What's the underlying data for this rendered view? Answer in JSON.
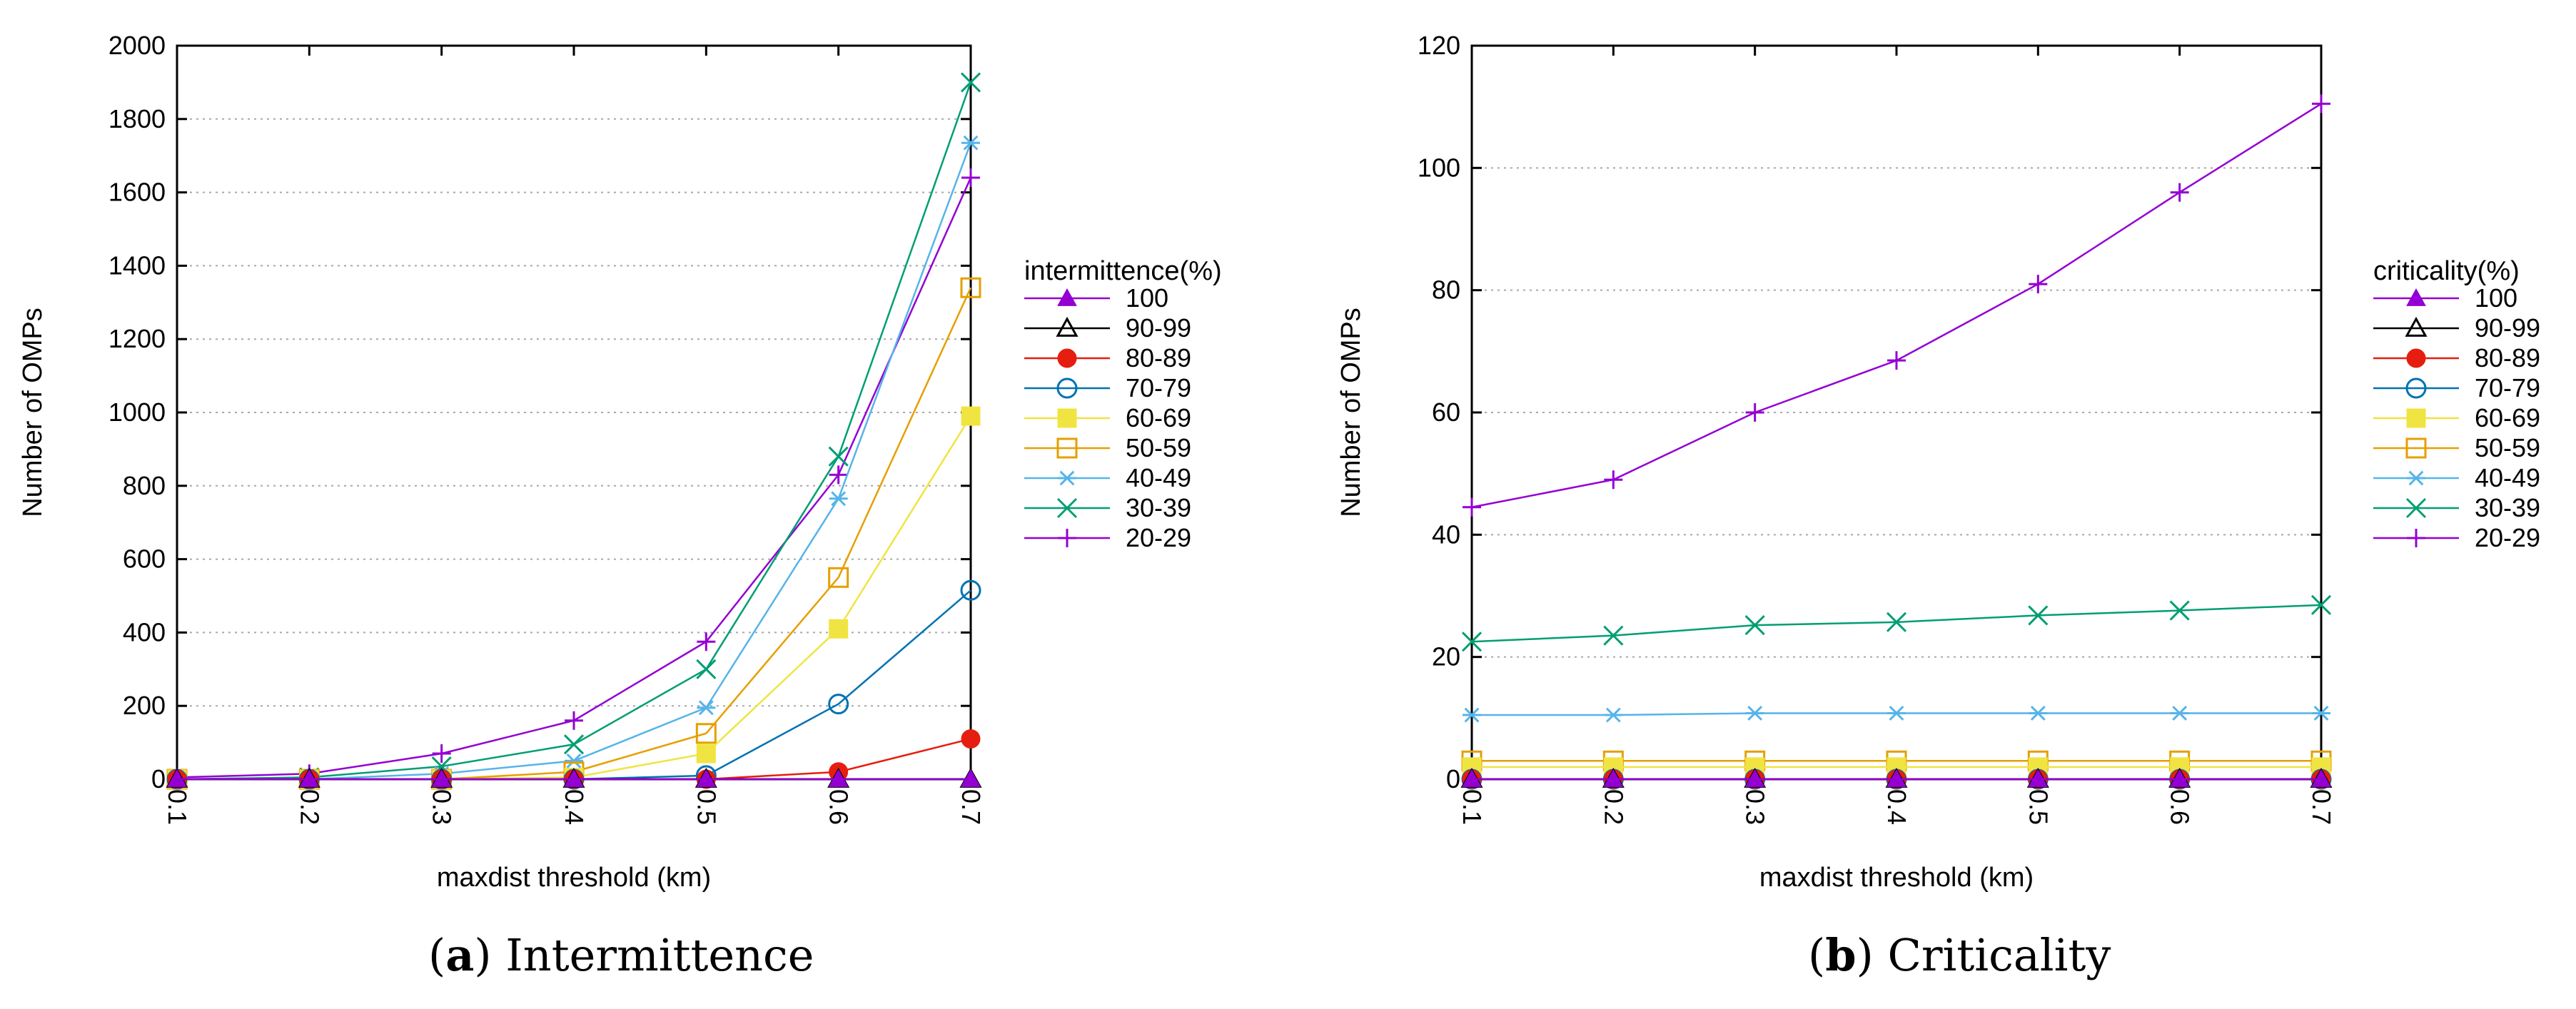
{
  "chart_data": [
    {
      "type": "line",
      "caption_letter": "a",
      "caption_title": "Intermittence",
      "xlabel": "maxdist threshold (km)",
      "ylabel": "Number of OMPs",
      "x": [
        0.1,
        0.2,
        0.3,
        0.4,
        0.5,
        0.6,
        0.7
      ],
      "x_tick_labels": [
        "0.1",
        "0.2",
        "0.3",
        "0.4",
        "0.5",
        "0.6",
        "0.7"
      ],
      "ylim": [
        0,
        2000
      ],
      "y_ticks": [
        0,
        200,
        400,
        600,
        800,
        1000,
        1200,
        1400,
        1600,
        1800,
        2000
      ],
      "y_tick_labels": [
        "0",
        "200",
        "400",
        "600",
        "800",
        "1000",
        "1200",
        "1400",
        "1600",
        "1800",
        "2000"
      ],
      "grid": true,
      "legend_title": "intermittence(%)",
      "legend_position": "right",
      "series": [
        {
          "name": "100",
          "color": "#9400d3",
          "marker": "triangle-filled",
          "values": [
            0,
            0,
            0,
            0,
            0,
            0,
            0
          ]
        },
        {
          "name": "90-99",
          "color": "#000000",
          "marker": "triangle-open",
          "values": [
            0,
            0,
            0,
            0,
            0,
            0,
            0
          ]
        },
        {
          "name": "80-89",
          "color": "#e51e10",
          "marker": "circle-filled",
          "values": [
            0,
            0,
            0,
            0,
            0,
            20,
            110
          ]
        },
        {
          "name": "70-79",
          "color": "#0072b2",
          "marker": "circle-open",
          "values": [
            0,
            0,
            0,
            0,
            10,
            205,
            515
          ]
        },
        {
          "name": "60-69",
          "color": "#f0e442",
          "marker": "square-filled",
          "values": [
            0,
            0,
            0,
            5,
            70,
            410,
            990
          ]
        },
        {
          "name": "50-59",
          "color": "#e69f00",
          "marker": "square-open",
          "values": [
            0,
            0,
            0,
            20,
            125,
            550,
            1340
          ]
        },
        {
          "name": "40-49",
          "color": "#56b4e9",
          "marker": "asterisk",
          "values": [
            0,
            0,
            15,
            50,
            195,
            765,
            1735
          ]
        },
        {
          "name": "30-39",
          "color": "#009e73",
          "marker": "x",
          "values": [
            0,
            5,
            35,
            95,
            300,
            880,
            1900
          ]
        },
        {
          "name": "20-29",
          "color": "#9400d3",
          "marker": "plus",
          "values": [
            5,
            15,
            70,
            160,
            375,
            830,
            1640
          ]
        }
      ]
    },
    {
      "type": "line",
      "caption_letter": "b",
      "caption_title": "Criticality",
      "xlabel": "maxdist threshold (km)",
      "ylabel": "Number of OMPs",
      "x": [
        0.1,
        0.2,
        0.3,
        0.4,
        0.5,
        0.6,
        0.7
      ],
      "x_tick_labels": [
        "0.1",
        "0.2",
        "0.3",
        "0.4",
        "0.5",
        "0.6",
        "0.7"
      ],
      "ylim": [
        0,
        120
      ],
      "y_ticks": [
        0,
        20,
        40,
        60,
        80,
        100,
        120
      ],
      "y_tick_labels": [
        "0",
        "20",
        "40",
        "60",
        "80",
        "100",
        "120"
      ],
      "grid": true,
      "legend_title": "criticality(%)",
      "legend_position": "right",
      "series": [
        {
          "name": "100",
          "color": "#9400d3",
          "marker": "triangle-filled",
          "values": [
            0,
            0,
            0,
            0,
            0,
            0,
            0
          ]
        },
        {
          "name": "90-99",
          "color": "#000000",
          "marker": "triangle-open",
          "values": [
            0,
            0,
            0,
            0,
            0,
            0,
            0
          ]
        },
        {
          "name": "80-89",
          "color": "#e51e10",
          "marker": "circle-filled",
          "values": [
            0,
            0,
            0,
            0,
            0,
            0,
            0
          ]
        },
        {
          "name": "70-79",
          "color": "#0072b2",
          "marker": "circle-open",
          "values": [
            0,
            0,
            0,
            0,
            0,
            0,
            0
          ]
        },
        {
          "name": "60-69",
          "color": "#f0e442",
          "marker": "square-filled",
          "values": [
            2,
            2,
            2,
            2,
            2,
            2,
            2
          ]
        },
        {
          "name": "50-59",
          "color": "#e69f00",
          "marker": "square-open",
          "values": [
            3,
            3,
            3,
            3,
            3,
            3,
            3
          ]
        },
        {
          "name": "40-49",
          "color": "#56b4e9",
          "marker": "asterisk",
          "values": [
            10.5,
            10.5,
            10.8,
            10.8,
            10.8,
            10.8,
            10.8
          ]
        },
        {
          "name": "30-39",
          "color": "#009e73",
          "marker": "x",
          "values": [
            22.5,
            23.5,
            25.2,
            25.7,
            26.8,
            27.6,
            28.5
          ]
        },
        {
          "name": "20-29",
          "color": "#9400d3",
          "marker": "plus",
          "values": [
            44.5,
            49,
            60,
            68.5,
            81,
            96,
            110.5
          ]
        }
      ]
    }
  ]
}
